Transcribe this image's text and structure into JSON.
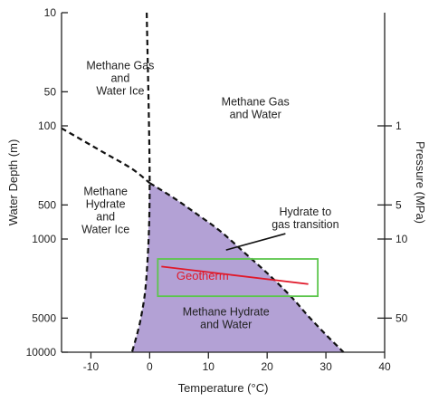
{
  "chart_data": {
    "type": "phase-diagram",
    "xlabel": "Temperature (°C)",
    "ylabel_left": "Water Depth (m)",
    "ylabel_right": "Pressure (MPa)",
    "xlim": [
      -15,
      40
    ],
    "ylim": [
      10,
      10000
    ],
    "y_scale": "log",
    "x_ticks": [
      -10,
      0,
      10,
      20,
      30,
      40
    ],
    "y_ticks_left": [
      10,
      50,
      100,
      500,
      1000,
      5000,
      10000
    ],
    "y_ticks_right": [
      {
        "depth": 100,
        "label": "1"
      },
      {
        "depth": 500,
        "label": "5"
      },
      {
        "depth": 1000,
        "label": "10"
      },
      {
        "depth": 5000,
        "label": "50"
      }
    ],
    "regions": [
      {
        "key": "gas_ice",
        "lines": [
          "Methane Gas",
          "and",
          "Water Ice"
        ],
        "x": -5,
        "depth": 38
      },
      {
        "key": "gas_water",
        "lines": [
          "Methane Gas",
          "and Water"
        ],
        "x": 18,
        "depth": 70
      },
      {
        "key": "hydrate_ice",
        "lines": [
          "Methane",
          "Hydrate",
          "and",
          "Water Ice"
        ],
        "x": -7.5,
        "depth": 560
      },
      {
        "key": "hydrate_water",
        "lines": [
          "Methane Hydrate",
          "and Water"
        ],
        "x": 13,
        "depth": 5000
      }
    ],
    "annotations": [
      {
        "key": "transition",
        "lines": [
          "Hydrate to",
          "gas transition"
        ],
        "x": 26.5,
        "depth": 620,
        "arrow_to": {
          "x": 13,
          "depth": 1250
        }
      }
    ],
    "hydrate_stability_boundary": [
      {
        "x": 0,
        "depth": 320
      },
      {
        "x": 4,
        "depth": 430
      },
      {
        "x": 8,
        "depth": 600
      },
      {
        "x": 12,
        "depth": 850
      },
      {
        "x": 16,
        "depth": 1300
      },
      {
        "x": 20,
        "depth": 2000
      },
      {
        "x": 24,
        "depth": 3200
      },
      {
        "x": 27,
        "depth": 4800
      },
      {
        "x": 30,
        "depth": 7000
      },
      {
        "x": 33,
        "depth": 10000
      }
    ],
    "ice_boundary": [
      {
        "x": -0.5,
        "depth": 10
      },
      {
        "x": 0,
        "depth": 320
      },
      {
        "x": -0.5,
        "depth": 2000
      },
      {
        "x": -1.5,
        "depth": 5000
      },
      {
        "x": -3,
        "depth": 10000
      }
    ],
    "gas_ice_boundary": [
      {
        "x": -15,
        "depth": 105
      },
      {
        "x": -8,
        "depth": 170
      },
      {
        "x": -3,
        "depth": 240
      },
      {
        "x": 0,
        "depth": 320
      }
    ],
    "geotherm": {
      "label": "Geotherm",
      "points": [
        {
          "x": 2,
          "depth": 1750
        },
        {
          "x": 27,
          "depth": 2500
        }
      ]
    },
    "highlight_box": {
      "x": [
        2,
        28
      ],
      "depth": [
        1500,
        3200
      ]
    },
    "colors": {
      "hydrate_fill": "#b3a1d5",
      "geotherm": "#e0192a",
      "highlight_box": "#5cc64c",
      "boundary": "#111111"
    }
  }
}
